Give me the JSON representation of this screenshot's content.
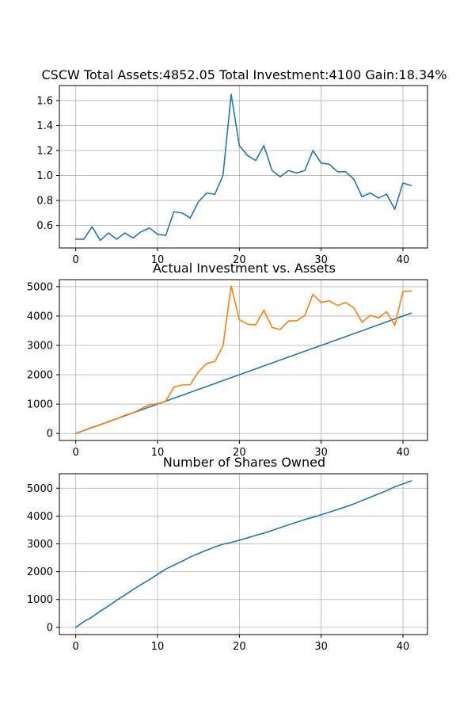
{
  "chart_data": [
    {
      "type": "line",
      "title": "CSCW Total Assets:4852.05  Total Investment:4100  Gain:18.34%",
      "xlabel": "",
      "ylabel": "",
      "xlim": [
        -2,
        43
      ],
      "ylim": [
        0.42,
        1.72
      ],
      "xticks": [
        0,
        10,
        20,
        30,
        40
      ],
      "yticks": [
        0.6,
        0.8,
        1.0,
        1.2,
        1.4,
        1.6
      ],
      "ytick_labels": [
        "0.6",
        "0.8",
        "1.0",
        "1.2",
        "1.4",
        "1.6"
      ],
      "grid": true,
      "x": [
        0,
        1,
        2,
        3,
        4,
        5,
        6,
        7,
        8,
        9,
        10,
        11,
        12,
        13,
        14,
        15,
        16,
        17,
        18,
        19,
        20,
        21,
        22,
        23,
        24,
        25,
        26,
        27,
        28,
        29,
        30,
        31,
        32,
        33,
        34,
        35,
        36,
        37,
        38,
        39,
        40,
        41
      ],
      "series": [
        {
          "color": "#1f77b4",
          "values": [
            0.49,
            0.49,
            0.59,
            0.48,
            0.54,
            0.49,
            0.54,
            0.5,
            0.55,
            0.58,
            0.53,
            0.52,
            0.71,
            0.7,
            0.66,
            0.79,
            0.86,
            0.85,
            1.0,
            1.65,
            1.24,
            1.16,
            1.12,
            1.24,
            1.04,
            0.99,
            1.04,
            1.02,
            1.04,
            1.2,
            1.1,
            1.09,
            1.03,
            1.03,
            0.97,
            0.83,
            0.86,
            0.82,
            0.85,
            0.73,
            0.94,
            0.92
          ]
        }
      ]
    },
    {
      "type": "line",
      "title": "Actual Investment vs. Assets",
      "xlabel": "",
      "ylabel": "",
      "xlim": [
        -2,
        43
      ],
      "ylim": [
        -240,
        5240
      ],
      "xticks": [
        0,
        10,
        20,
        30,
        40
      ],
      "yticks": [
        0,
        1000,
        2000,
        3000,
        4000,
        5000
      ],
      "ytick_labels": [
        "0",
        "1000",
        "2000",
        "3000",
        "4000",
        "5000"
      ],
      "grid": true,
      "x": [
        0,
        1,
        2,
        3,
        4,
        5,
        6,
        7,
        8,
        9,
        10,
        11,
        12,
        13,
        14,
        15,
        16,
        17,
        18,
        19,
        20,
        21,
        22,
        23,
        24,
        25,
        26,
        27,
        28,
        29,
        30,
        31,
        32,
        33,
        34,
        35,
        36,
        37,
        38,
        39,
        40,
        41
      ],
      "series": [
        {
          "color": "#1f77b4",
          "values": [
            0,
            100,
            200,
            300,
            400,
            500,
            600,
            700,
            800,
            900,
            1000,
            1100,
            1200,
            1300,
            1400,
            1500,
            1600,
            1700,
            1800,
            1900,
            2000,
            2100,
            2200,
            2300,
            2400,
            2500,
            2600,
            2700,
            2800,
            2900,
            3000,
            3100,
            3200,
            3300,
            3400,
            3500,
            3600,
            3700,
            3800,
            3900,
            4000,
            4100
          ]
        },
        {
          "color": "#ff7f0e",
          "values": [
            0,
            100,
            210,
            290,
            410,
            490,
            620,
            700,
            840,
            980,
            1010,
            1100,
            1580,
            1650,
            1660,
            2100,
            2380,
            2450,
            2980,
            5020,
            3880,
            3720,
            3700,
            4200,
            3610,
            3540,
            3830,
            3840,
            4020,
            4740,
            4460,
            4520,
            4360,
            4460,
            4280,
            3790,
            4020,
            3940,
            4150,
            3680,
            4840,
            4852
          ]
        }
      ]
    },
    {
      "type": "line",
      "title": "Number of Shares Owned",
      "xlabel": "",
      "ylabel": "",
      "xlim": [
        -2,
        43
      ],
      "ylim": [
        -260,
        5520
      ],
      "xticks": [
        0,
        10,
        20,
        30,
        40
      ],
      "yticks": [
        0,
        1000,
        2000,
        3000,
        4000,
        5000
      ],
      "ytick_labels": [
        "0",
        "1000",
        "2000",
        "3000",
        "4000",
        "5000"
      ],
      "grid": true,
      "x": [
        0,
        1,
        2,
        3,
        4,
        5,
        6,
        7,
        8,
        9,
        10,
        11,
        12,
        13,
        14,
        15,
        16,
        17,
        18,
        19,
        20,
        21,
        22,
        23,
        24,
        25,
        26,
        27,
        28,
        29,
        30,
        31,
        32,
        33,
        34,
        35,
        36,
        37,
        38,
        39,
        40,
        41
      ],
      "series": [
        {
          "color": "#1f77b4",
          "values": [
            0,
            204,
            373,
            581,
            767,
            973,
            1158,
            1358,
            1540,
            1713,
            1902,
            2094,
            2234,
            2377,
            2529,
            2656,
            2772,
            2889,
            2989,
            3050,
            3130,
            3216,
            3305,
            3386,
            3482,
            3583,
            3679,
            3777,
            3873,
            3956,
            4047,
            4139,
            4236,
            4333,
            4436,
            4557,
            4673,
            4795,
            4912,
            5049,
            5155,
            5262
          ]
        }
      ]
    }
  ]
}
